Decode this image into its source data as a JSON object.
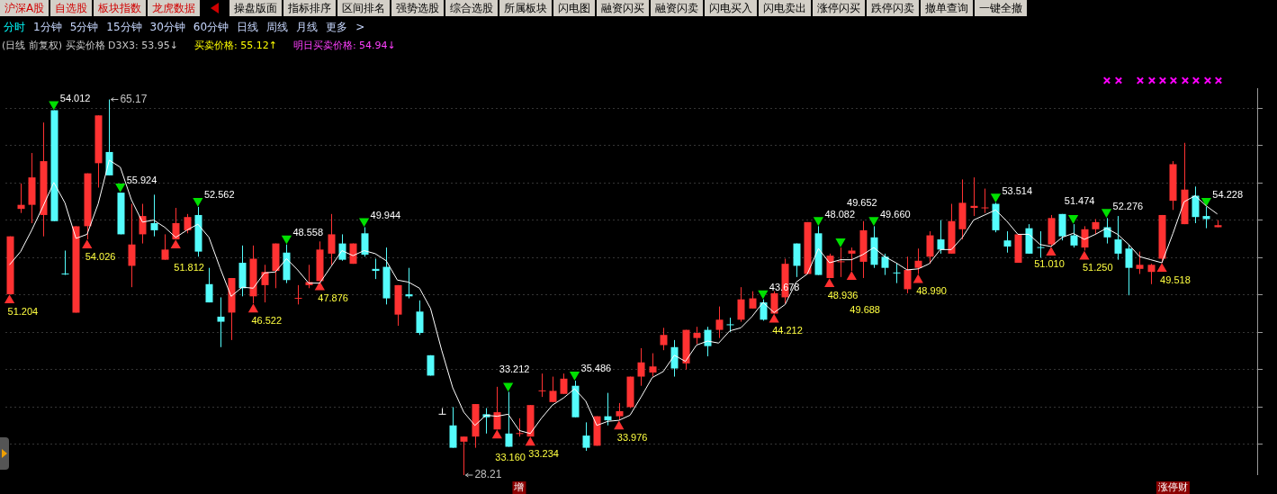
{
  "chart_data": {
    "type": "candlestick",
    "title": "(日线 前复权) 买卖价格 D3X3: 53.95↓",
    "categories": [
      null,
      null,
      null,
      null,
      null,
      null,
      null,
      null,
      null,
      null,
      null,
      null,
      null,
      null,
      null,
      null,
      null,
      null,
      null,
      null,
      null,
      null,
      null,
      null,
      null,
      null,
      null,
      null,
      null,
      null,
      null,
      null,
      null,
      null,
      null,
      null,
      null,
      null,
      null,
      null,
      null,
      null,
      null,
      null,
      null,
      null,
      "增",
      null,
      null,
      null,
      null,
      null,
      null,
      null,
      null,
      null,
      null,
      null,
      null,
      null,
      null,
      null,
      null,
      null,
      null,
      null,
      null,
      null,
      null,
      null,
      null,
      null,
      null,
      null,
      null,
      null,
      null,
      null,
      null,
      null,
      null,
      null,
      null,
      null,
      null,
      null,
      null,
      null,
      null,
      null,
      null,
      null,
      null,
      null,
      null,
      null,
      null,
      null,
      null,
      null,
      null,
      null,
      null,
      null,
      null,
      "涨停财",
      null,
      null,
      null,
      null
    ],
    "yticks": [
      {
        "value": 64.37,
        "label": null
      },
      {
        "value": 60.69,
        "label": null
      },
      {
        "value": 57.01,
        "label": null
      },
      {
        "value": 53.34,
        "label": null
      },
      {
        "value": 49.66,
        "label": null
      },
      {
        "value": 45.98,
        "label": null
      },
      {
        "value": 42.31,
        "label": null
      },
      {
        "value": 38.63,
        "label": null
      },
      {
        "value": 34.96,
        "label": null
      },
      {
        "value": 31.29,
        "label": null
      }
    ],
    "grid": "y",
    "tick_labels": "x",
    "legend": false,
    "ohlc": [
      [
        46.0,
        51.7,
        46.0,
        51.7
      ],
      [
        54.4,
        56.9,
        54.0,
        54.8
      ],
      [
        54.8,
        59.9,
        53.0,
        57.5
      ],
      [
        53.8,
        62.9,
        51.7,
        59.1
      ],
      [
        64.1,
        64.1,
        53.2,
        53.2
      ],
      [
        48.0,
        50.3,
        47.9,
        47.9
      ],
      [
        44.2,
        52.7,
        44.2,
        52.7
      ],
      [
        52.7,
        57.9,
        51.4,
        57.9
      ],
      [
        58.9,
        63.6,
        56.5,
        63.6
      ],
      [
        60.0,
        65.17,
        57.7,
        57.7
      ],
      [
        56.0,
        56.0,
        51.9,
        51.9
      ],
      [
        48.8,
        54.9,
        46.7,
        50.9
      ],
      [
        51.9,
        54.9,
        51.0,
        53.7
      ],
      [
        53.0,
        55.8,
        51.7,
        52.3
      ],
      [
        49.4,
        51.9,
        49.4,
        50.4
      ],
      [
        51.4,
        54.5,
        51.4,
        53.0
      ],
      [
        52.3,
        53.9,
        52.0,
        53.6
      ],
      [
        53.8,
        54.6,
        49.7,
        50.2
      ],
      [
        47.0,
        48.6,
        45.2,
        45.2
      ],
      [
        43.8,
        45.7,
        40.8,
        43.3
      ],
      [
        44.2,
        47.6,
        41.5,
        47.6
      ],
      [
        49.1,
        50.8,
        45.8,
        46.6
      ],
      [
        45.8,
        50.8,
        45.1,
        49.5
      ],
      [
        46.9,
        48.9,
        45.2,
        48.2
      ],
      [
        48.3,
        51.0,
        46.6,
        51.0
      ],
      [
        50.1,
        50.9,
        47.1,
        47.4
      ],
      [
        45.5,
        46.9,
        45.0,
        45.6
      ],
      [
        46.9,
        48.9,
        46.6,
        47.2
      ],
      [
        47.3,
        51.2,
        47.3,
        50.4
      ],
      [
        50.0,
        53.9,
        48.9,
        51.9
      ],
      [
        51.0,
        51.9,
        49.3,
        49.4
      ],
      [
        49.0,
        51.0,
        49.0,
        51.0
      ],
      [
        52.0,
        52.6,
        49.7,
        49.9
      ],
      [
        48.5,
        49.5,
        47.5,
        48.3
      ],
      [
        48.7,
        50.6,
        45.0,
        45.6
      ],
      [
        44.0,
        46.9,
        42.9,
        46.9
      ],
      [
        46.0,
        48.6,
        45.6,
        45.8
      ],
      [
        44.3,
        45.4,
        42.0,
        42.2
      ],
      [
        40.0,
        40.0,
        38.0,
        38.0
      ],
      [
        34.2,
        34.8,
        34.2,
        34.2
      ],
      [
        33.1,
        34.9,
        30.9,
        30.9
      ],
      [
        31.5,
        32.0,
        28.21,
        32.0
      ],
      [
        32.0,
        35.2,
        30.9,
        35.2
      ],
      [
        34.2,
        34.8,
        32.3,
        33.9
      ],
      [
        32.7,
        36.9,
        32.7,
        34.4
      ],
      [
        32.3,
        36.4,
        31.0,
        31.0
      ],
      [
        32.2,
        33.8,
        32.0,
        32.3
      ],
      [
        32.0,
        35.1,
        32.0,
        35.1
      ],
      [
        36.4,
        38.2,
        35.9,
        36.5
      ],
      [
        35.4,
        37.9,
        35.4,
        36.5
      ],
      [
        36.2,
        38.2,
        36.2,
        37.7
      ],
      [
        37.0,
        37.5,
        33.9,
        33.9
      ],
      [
        32.1,
        33.4,
        30.6,
        30.9
      ],
      [
        31.1,
        34.0,
        31.1,
        34.0
      ],
      [
        34.0,
        36.3,
        33.1,
        33.6
      ],
      [
        34.0,
        35.3,
        33.6,
        34.5
      ],
      [
        34.9,
        37.9,
        34.8,
        37.9
      ],
      [
        37.9,
        40.7,
        37.0,
        39.3
      ],
      [
        38.3,
        40.2,
        37.9,
        38.9
      ],
      [
        41.0,
        42.7,
        40.5,
        42.0
      ],
      [
        40.8,
        41.5,
        37.9,
        38.7
      ],
      [
        39.2,
        42.5,
        38.6,
        42.5
      ],
      [
        41.7,
        42.8,
        41.1,
        42.2
      ],
      [
        42.5,
        42.8,
        39.9,
        40.9
      ],
      [
        42.5,
        44.8,
        41.7,
        43.5
      ],
      [
        43.0,
        43.7,
        42.3,
        42.9
      ],
      [
        43.5,
        46.7,
        43.3,
        45.5
      ],
      [
        44.6,
        46.3,
        44.6,
        45.6
      ],
      [
        45.2,
        45.5,
        43.4,
        43.5
      ],
      [
        44.1,
        46.3,
        44.1,
        46.1
      ],
      [
        45.7,
        49.5,
        45.1,
        49.0
      ],
      [
        51.0,
        51.0,
        47.7,
        48.8
      ],
      [
        48.0,
        53.1,
        48.0,
        53.1
      ],
      [
        52.0,
        52.7,
        47.9,
        47.9
      ],
      [
        47.6,
        50.0,
        47.6,
        49.8
      ],
      [
        49.1,
        50.6,
        47.7,
        49.2
      ],
      [
        50.0,
        50.6,
        48.3,
        50.3
      ],
      [
        49.2,
        53.2,
        47.6,
        52.3
      ],
      [
        51.6,
        52.7,
        48.6,
        48.9
      ],
      [
        49.7,
        50.0,
        47.9,
        48.6
      ],
      [
        48.1,
        49.1,
        47.1,
        48.0
      ],
      [
        46.5,
        49.7,
        46.1,
        48.4
      ],
      [
        48.6,
        50.5,
        48.0,
        49.3
      ],
      [
        49.7,
        52.2,
        49.0,
        51.8
      ],
      [
        51.4,
        53.3,
        50.0,
        50.4
      ],
      [
        50.0,
        54.9,
        50.0,
        53.2
      ],
      [
        52.4,
        57.3,
        51.4,
        55.0
      ],
      [
        54.5,
        57.5,
        53.7,
        54.7
      ],
      [
        54.4,
        56.4,
        54.0,
        54.5
      ],
      [
        54.9,
        55.0,
        52.1,
        52.3
      ],
      [
        51.3,
        52.2,
        50.1,
        50.7
      ],
      [
        49.1,
        51.9,
        49.1,
        51.9
      ],
      [
        52.5,
        52.9,
        50.0,
        50.0
      ],
      [
        50.6,
        52.2,
        49.6,
        50.5
      ],
      [
        50.9,
        53.8,
        50.7,
        53.5
      ],
      [
        53.9,
        53.9,
        51.3,
        51.7
      ],
      [
        51.8,
        52.9,
        50.6,
        50.8
      ],
      [
        50.6,
        52.7,
        50.3,
        52.4
      ],
      [
        52.4,
        53.4,
        51.9,
        53.1
      ],
      [
        52.6,
        53.5,
        51.0,
        51.6
      ],
      [
        51.4,
        53.7,
        49.4,
        50.0
      ],
      [
        50.5,
        50.9,
        45.9,
        48.6
      ],
      [
        48.5,
        50.2,
        48.0,
        48.9
      ],
      [
        48.2,
        49.0,
        47.0,
        48.9
      ],
      [
        49.5,
        53.8,
        49.1,
        53.8
      ],
      [
        55.2,
        59.1,
        54.3,
        58.8
      ],
      [
        52.9,
        60.9,
        52.9,
        56.3
      ],
      [
        55.7,
        56.6,
        53.0,
        53.6
      ],
      [
        53.7,
        54.6,
        52.5,
        53.4
      ],
      [
        52.6,
        53.3,
        52.6,
        52.8
      ]
    ],
    "colors": [
      "#ff3232",
      "#ff3232",
      "#ff3232",
      "#ff3232",
      "#54fcfc",
      "#54fcfc",
      "#ff3232",
      "#ff3232",
      "#ff3232",
      "#54fcfc",
      "#54fcfc",
      "#ff3232",
      "#ff3232",
      "#54fcfc",
      "#ff3232",
      "#ff3232",
      "#ff3232",
      "#54fcfc",
      "#54fcfc",
      "#54fcfc",
      "#ff3232",
      "#54fcfc",
      "#ff3232",
      "#ff3232",
      "#ff3232",
      "#54fcfc",
      "#ff3232",
      "#ff3232",
      "#ff3232",
      "#ff3232",
      "#54fcfc",
      "#ff3232",
      "#54fcfc",
      "#54fcfc",
      "#54fcfc",
      "#ff3232",
      "#54fcfc",
      "#54fcfc",
      "#54fcfc",
      "#ffffff",
      "#54fcfc",
      "#ff3232",
      "#ff3232",
      "#54fcfc",
      "#ff3232",
      "#54fcfc",
      "#ff3232",
      "#ff3232",
      "#ff3232",
      "#ff3232",
      "#ff3232",
      "#54fcfc",
      "#54fcfc",
      "#ff3232",
      "#54fcfc",
      "#ff3232",
      "#ff3232",
      "#ff3232",
      "#ff3232",
      "#ff3232",
      "#54fcfc",
      "#ff3232",
      "#ff3232",
      "#54fcfc",
      "#ff3232",
      "#54fcfc",
      "#ff3232",
      "#ff3232",
      "#54fcfc",
      "#ff3232",
      "#ff3232",
      "#54fcfc",
      "#ff3232",
      "#54fcfc",
      "#ff3232",
      "#ff3232",
      "#ff3232",
      "#ff3232",
      "#54fcfc",
      "#54fcfc",
      "#54fcfc",
      "#ff3232",
      "#ff3232",
      "#ff3232",
      "#54fcfc",
      "#ff3232",
      "#ff3232",
      "#ff3232",
      "#ff3232",
      "#54fcfc",
      "#54fcfc",
      "#ff3232",
      "#54fcfc",
      "#54fcfc",
      "#ff3232",
      "#54fcfc",
      "#54fcfc",
      "#ff3232",
      "#ff3232",
      "#54fcfc",
      "#54fcfc",
      "#54fcfc",
      "#ff3232",
      "#ff3232",
      "#ff3232",
      "#ff3232",
      "#ff3232",
      "#54fcfc",
      "#54fcfc",
      "#ff3232"
    ],
    "series": [
      {
        "type": "line",
        "color": "#ffffff",
        "marker": "none",
        "line_style": "solid",
        "values": [
          48.9,
          50.2,
          52.3,
          54.6,
          57.0,
          55.0,
          51.5,
          51.9,
          54.9,
          59.2,
          58.5,
          55.3,
          53.1,
          53.3,
          52.6,
          51.6,
          52.3,
          52.9,
          51.6,
          48.6,
          45.8,
          46.7,
          46.6,
          48.1,
          48.2,
          49.5,
          48.4,
          47.1,
          47.1,
          48.7,
          50.3,
          49.8,
          50.3,
          50.0,
          49.3,
          47.4,
          47.2,
          46.6,
          44.6,
          40.5,
          36.8,
          34.4,
          33.1,
          34.1,
          34.0,
          34.2,
          32.6,
          32.3,
          33.8,
          35.1,
          35.8,
          36.7,
          35.5,
          33.1,
          33.5,
          33.6,
          34.1,
          35.9,
          37.8,
          38.4,
          40.0,
          39.4,
          41.0,
          41.4,
          41.2,
          42.4,
          42.7,
          43.8,
          45.2,
          44.2,
          45.0,
          47.2,
          48.0,
          50.5,
          49.1,
          49.4,
          49.4,
          49.9,
          50.6,
          49.7,
          49.1,
          48.4,
          48.5,
          49.0,
          50.4,
          50.4,
          51.6,
          53.3,
          53.8,
          54.3,
          53.2,
          51.9,
          51.9,
          50.9,
          50.7,
          51.6,
          52.0,
          51.4,
          51.9,
          52.5,
          51.9,
          50.9,
          49.7,
          49.4,
          49.1,
          52.0,
          55.1,
          55.7,
          54.7,
          53.9
        ]
      },
      {
        "type": "scatter",
        "color": "#00e000",
        "marker": "triangle",
        "values": [
          null,
          null,
          null,
          null,
          64.7,
          null,
          null,
          null,
          null,
          null,
          56.6,
          null,
          null,
          null,
          null,
          null,
          null,
          55.2,
          null,
          null,
          null,
          null,
          null,
          null,
          null,
          51.5,
          null,
          null,
          null,
          null,
          null,
          null,
          53.2,
          null,
          null,
          null,
          null,
          null,
          null,
          null,
          null,
          null,
          null,
          null,
          null,
          37.0,
          null,
          null,
          null,
          null,
          null,
          38.1,
          null,
          null,
          null,
          null,
          null,
          null,
          null,
          null,
          null,
          null,
          null,
          null,
          null,
          null,
          null,
          null,
          46.1,
          null,
          null,
          null,
          null,
          53.3,
          null,
          51.2,
          null,
          null,
          53.3,
          null,
          null,
          null,
          null,
          null,
          null,
          null,
          null,
          null,
          null,
          55.6,
          null,
          null,
          null,
          null,
          null,
          null,
          53.5,
          null,
          null,
          54.1,
          null,
          null,
          null,
          null,
          null,
          null,
          null,
          null,
          55.2,
          null
        ]
      },
      {
        "type": "scatter",
        "color": "#ff3030",
        "marker": "triangle",
        "values": [
          45.4,
          null,
          null,
          null,
          null,
          null,
          null,
          50.8,
          null,
          null,
          null,
          null,
          null,
          null,
          null,
          50.8,
          null,
          null,
          null,
          null,
          null,
          null,
          44.5,
          null,
          null,
          null,
          null,
          null,
          46.7,
          null,
          null,
          null,
          null,
          null,
          null,
          null,
          null,
          null,
          null,
          null,
          null,
          null,
          null,
          null,
          32.1,
          null,
          null,
          31.4,
          null,
          null,
          null,
          null,
          null,
          null,
          null,
          33.0,
          null,
          null,
          null,
          null,
          null,
          null,
          null,
          null,
          null,
          null,
          null,
          null,
          null,
          43.5,
          null,
          null,
          null,
          null,
          47.0,
          null,
          47.7,
          null,
          null,
          null,
          null,
          null,
          47.4,
          null,
          null,
          null,
          null,
          null,
          null,
          null,
          null,
          null,
          null,
          null,
          50.1,
          null,
          null,
          49.7,
          null,
          null,
          null,
          null,
          null,
          null,
          48.5,
          null,
          null,
          null,
          null,
          null
        ]
      }
    ],
    "annotations": [
      "沪深A股 自选股 板块指数 龙虎数据",
      "操盘版面 指标排序 区间排名 强势选股 综合选股 所属板块 闪电图 融资闪买 融资闪卖 闪电买入 闪电卖出 涨停闪买 跌停闪卖 撤单查询 一键全撤",
      "分时 1分钟 5分钟 15分钟 30分钟 60分钟 日线 周线 月线 更多 >",
      "买卖价格: 55.12↑",
      "明日买卖价格: 54.94↓",
      "65.17",
      "28.21",
      "54.012",
      "55.924",
      "52.562",
      "48.558",
      "49.944",
      "33.212",
      "35.486",
      "43.678",
      "48.082",
      "49.652",
      "49.660",
      "53.514",
      "51.474",
      "52.276",
      "54.228",
      "51.204",
      "54.026",
      "51.812",
      "46.522",
      "47.876",
      "33.160",
      "33.234",
      "33.976",
      "44.212",
      "48.936",
      "49.688",
      "48.990",
      "51.010",
      "51.250",
      "49.518"
    ]
  }
}
